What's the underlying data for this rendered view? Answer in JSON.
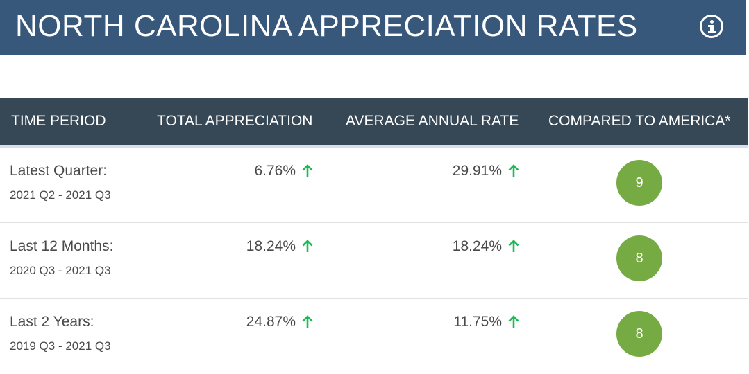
{
  "header": {
    "title": "NORTH CAROLINA APPRECIATION RATES",
    "info_icon": "info-circle-icon"
  },
  "table": {
    "columns": [
      "TIME PERIOD",
      "TOTAL APPRECIATION",
      "AVERAGE ANNUAL RATE",
      "COMPARED TO AMERICA*"
    ],
    "rows": [
      {
        "period": "Latest Quarter:",
        "range": "2021 Q2 - 2021 Q3",
        "total": "6.76%",
        "avg": "29.91%",
        "score": "9",
        "trend_icon": "up-arrow-icon"
      },
      {
        "period": "Last 12 Months:",
        "range": "2020 Q3 - 2021 Q3",
        "total": "18.24%",
        "avg": "18.24%",
        "score": "8",
        "trend_icon": "up-arrow-icon"
      },
      {
        "period": "Last 2 Years:",
        "range": "2019 Q3 - 2021 Q3",
        "total": "24.87%",
        "avg": "11.75%",
        "score": "8",
        "trend_icon": "up-arrow-icon"
      }
    ]
  },
  "colors": {
    "title_bg": "#37577b",
    "header_bg": "#364756",
    "trend_up": "#1db954",
    "badge": "#76ab44",
    "text": "#4a4a4a"
  }
}
